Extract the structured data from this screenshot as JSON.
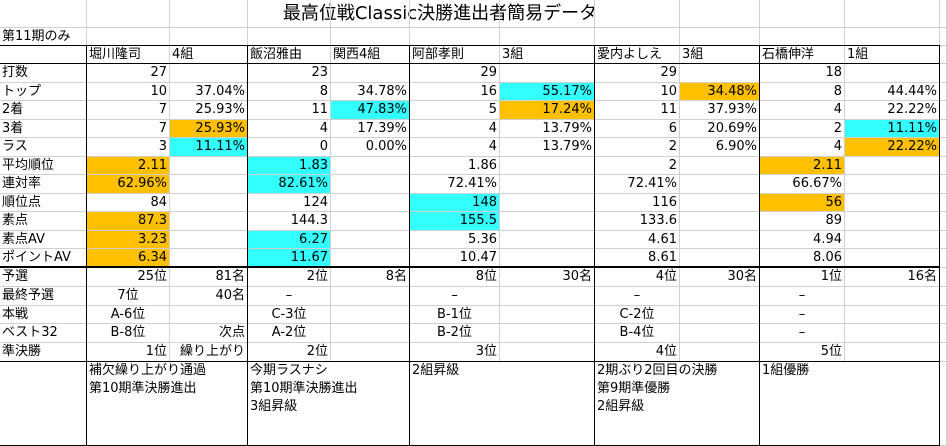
{
  "title": "最高位戦Classic決勝進出者簡易データ",
  "subtitle": "第11期のみ",
  "header": [
    "堀川隆司",
    "4組",
    "飯沼雅由",
    "関西4組",
    "阿部孝則",
    "3組",
    "愛内よしえ",
    "3組",
    "石橋伸洋",
    "1組"
  ],
  "stats": [
    {
      "label": "打数",
      "cells": [
        "27",
        null,
        "23",
        null,
        "29",
        null,
        "29",
        null,
        "18",
        null
      ]
    },
    {
      "label": "トップ",
      "cells": [
        "10",
        "37.04%",
        "8",
        "34.78%",
        "16",
        {
          "text": "55.17%",
          "fill": "#33ffff"
        },
        "10",
        {
          "text": "34.48%",
          "fill": "#ffc000"
        },
        "8",
        "44.44%"
      ]
    },
    {
      "label": "2着",
      "cells": [
        "7",
        "25.93%",
        "11",
        {
          "text": "47.83%",
          "fill": "#33ffff"
        },
        "5",
        {
          "text": "17.24%",
          "fill": "#ffc000"
        },
        "11",
        "37.93%",
        "4",
        "22.22%"
      ]
    },
    {
      "label": "3着",
      "cells": [
        "7",
        {
          "text": "25.93%",
          "fill": "#ffc000"
        },
        "4",
        "17.39%",
        "4",
        "13.79%",
        "6",
        "20.69%",
        "2",
        {
          "text": "11.11%",
          "fill": "#33ffff"
        }
      ]
    },
    {
      "label": "ラス",
      "cells": [
        "3",
        {
          "text": "11.11%",
          "fill": "#33ffff"
        },
        "0",
        "0.00%",
        "4",
        "13.79%",
        "2",
        "6.90%",
        "4",
        {
          "text": "22.22%",
          "fill": "#ffc000"
        }
      ]
    },
    {
      "label": "平均順位",
      "cells": [
        {
          "text": "2.11",
          "fill": "#ffc000"
        },
        null,
        {
          "text": "1.83",
          "fill": "#33ffff"
        },
        null,
        "1.86",
        null,
        "2",
        null,
        {
          "text": "2.11",
          "fill": "#ffc000"
        },
        null
      ]
    },
    {
      "label": "連対率",
      "cells": [
        {
          "text": "62.96%",
          "fill": "#ffc000"
        },
        null,
        {
          "text": "82.61%",
          "fill": "#33ffff"
        },
        null,
        "72.41%",
        null,
        "72.41%",
        null,
        "66.67%",
        null
      ]
    },
    {
      "label": "順位点",
      "cells": [
        "84",
        null,
        "124",
        null,
        {
          "text": "148",
          "fill": "#33ffff"
        },
        null,
        "116",
        null,
        {
          "text": "56",
          "fill": "#ffc000"
        },
        null
      ]
    },
    {
      "label": "素点",
      "cells": [
        {
          "text": "87.3",
          "fill": "#ffc000"
        },
        null,
        "144.3",
        null,
        {
          "text": "155.5",
          "fill": "#33ffff"
        },
        null,
        "133.6",
        null,
        "89",
        null
      ]
    },
    {
      "label": "素点AV",
      "cells": [
        {
          "text": "3.23",
          "fill": "#ffc000"
        },
        null,
        {
          "text": "6.27",
          "fill": "#33ffff"
        },
        null,
        "5.36",
        null,
        "4.61",
        null,
        "4.94",
        null
      ]
    },
    {
      "label": "ポイントAV",
      "cells": [
        {
          "text": "6.34",
          "fill": "#ffc000"
        },
        null,
        {
          "text": "11.67",
          "fill": "#33ffff"
        },
        null,
        "10.47",
        null,
        "8.61",
        null,
        "8.06",
        null
      ]
    }
  ],
  "results": [
    {
      "label": "予選",
      "cells": [
        "25位",
        "81名",
        "2位",
        "8名",
        "8位",
        "30名",
        "4位",
        "30名",
        "1位",
        "16名"
      ]
    },
    {
      "label": "最終予選",
      "cells": [
        "7位",
        "40名",
        "–",
        null,
        "–",
        null,
        "–",
        null,
        "–",
        null
      ]
    },
    {
      "label": "本戦",
      "cells": [
        "A-6位",
        null,
        "C-3位",
        null,
        "B-1位",
        null,
        "C-2位",
        null,
        "–",
        null
      ]
    },
    {
      "label": "ベスト32",
      "cells": [
        "B-8位",
        "次点",
        "A-2位",
        null,
        "B-2位",
        null,
        "B-4位",
        null,
        "–",
        null
      ]
    },
    {
      "label": "準決勝",
      "cells": [
        "1位",
        "繰り上がり",
        "2位",
        null,
        "3位",
        null,
        "4位",
        null,
        "5位",
        null
      ]
    }
  ],
  "notes": [
    [
      "補欠繰り上がり通過",
      "第10期準決勝進出"
    ],
    [
      "今期ラスナシ",
      "第10期準決勝進出",
      "3組昇級"
    ],
    [
      "2組昇級"
    ],
    [
      "2期ぶり2回目の決勝",
      "第9期準優勝",
      "2組昇級"
    ],
    [
      "1組優勝"
    ]
  ]
}
